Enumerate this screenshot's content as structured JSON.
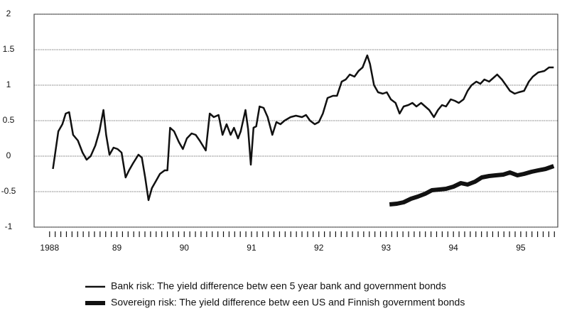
{
  "chart_data": {
    "type": "line",
    "xlim": [
      1987.77,
      1995.55
    ],
    "xticks": [
      1988,
      {
        "value": 1989,
        "label": "89"
      },
      {
        "value": 1990,
        "label": "90"
      },
      {
        "value": 1991,
        "label": "91"
      },
      {
        "value": 1992,
        "label": "92"
      },
      {
        "value": 1993,
        "label": "93"
      },
      {
        "value": 1994,
        "label": "94"
      },
      {
        "value": 1995,
        "label": "95"
      }
    ],
    "ylim": [
      -1,
      2
    ],
    "yticks": [
      -1,
      -0.5,
      0,
      0.5,
      1,
      1.5,
      2
    ],
    "grid": true,
    "series": [
      {
        "name": "Bank risk: The yield difference betw een 5 year bank and government bonds",
        "color": "#111111",
        "width": 2.5,
        "x": [
          1988.05,
          1988.13,
          1988.19,
          1988.24,
          1988.29,
          1988.35,
          1988.42,
          1988.49,
          1988.55,
          1988.61,
          1988.68,
          1988.74,
          1988.8,
          1988.84,
          1988.89,
          1988.95,
          1989.01,
          1989.07,
          1989.13,
          1989.18,
          1989.24,
          1989.32,
          1989.37,
          1989.42,
          1989.47,
          1989.52,
          1989.58,
          1989.64,
          1989.71,
          1989.75,
          1989.79,
          1989.85,
          1989.92,
          1989.98,
          1990.04,
          1990.11,
          1990.17,
          1990.23,
          1990.32,
          1990.38,
          1990.44,
          1990.51,
          1990.57,
          1990.63,
          1990.69,
          1990.74,
          1990.8,
          1990.84,
          1990.91,
          1990.95,
          1990.99,
          1991.03,
          1991.07,
          1991.12,
          1991.18,
          1991.24,
          1991.31,
          1991.37,
          1991.43,
          1991.49,
          1991.58,
          1991.66,
          1991.75,
          1991.81,
          1991.87,
          1991.94,
          1992.0,
          1992.06,
          1992.13,
          1992.21,
          1992.27,
          1992.34,
          1992.4,
          1992.46,
          1992.53,
          1992.59,
          1992.65,
          1992.72,
          1992.76,
          1992.82,
          1992.88,
          1992.95,
          1993.01,
          1993.07,
          1993.14,
          1993.2,
          1993.26,
          1993.33,
          1993.39,
          1993.45,
          1993.52,
          1993.58,
          1993.64,
          1993.71,
          1993.77,
          1993.83,
          1993.89,
          1993.96,
          1994.02,
          1994.08,
          1994.15,
          1994.21,
          1994.27,
          1994.34,
          1994.4,
          1994.46,
          1994.53,
          1994.59,
          1994.65,
          1994.72,
          1994.78,
          1994.84,
          1994.91,
          1994.97,
          1995.05,
          1995.12,
          1995.18,
          1995.26,
          1995.35,
          1995.42,
          1995.49
        ],
        "values": [
          -0.18,
          0.35,
          0.45,
          0.6,
          0.62,
          0.3,
          0.22,
          0.05,
          -0.05,
          0.0,
          0.15,
          0.35,
          0.65,
          0.3,
          0.02,
          0.12,
          0.1,
          0.05,
          -0.3,
          -0.2,
          -0.1,
          0.02,
          -0.02,
          -0.3,
          -0.62,
          -0.45,
          -0.35,
          -0.25,
          -0.2,
          -0.2,
          0.4,
          0.35,
          0.2,
          0.1,
          0.25,
          0.32,
          0.3,
          0.22,
          0.08,
          0.6,
          0.55,
          0.58,
          0.3,
          0.45,
          0.3,
          0.4,
          0.25,
          0.35,
          0.65,
          0.38,
          -0.12,
          0.4,
          0.42,
          0.7,
          0.68,
          0.55,
          0.3,
          0.48,
          0.45,
          0.5,
          0.55,
          0.57,
          0.55,
          0.58,
          0.5,
          0.45,
          0.48,
          0.6,
          0.82,
          0.85,
          0.85,
          1.05,
          1.08,
          1.15,
          1.12,
          1.2,
          1.25,
          1.42,
          1.3,
          1.0,
          0.9,
          0.88,
          0.9,
          0.8,
          0.75,
          0.6,
          0.7,
          0.72,
          0.75,
          0.7,
          0.75,
          0.7,
          0.65,
          0.55,
          0.65,
          0.72,
          0.7,
          0.8,
          0.78,
          0.75,
          0.8,
          0.92,
          1.0,
          1.05,
          1.02,
          1.08,
          1.05,
          1.1,
          1.15,
          1.08,
          1.0,
          0.92,
          0.88,
          0.9,
          0.92,
          1.05,
          1.12,
          1.18,
          1.2,
          1.25,
          1.25
        ]
      },
      {
        "name": "Sovereign risk: The yield difference betw een US and Finnish government bonds",
        "color": "#111111",
        "width": 6,
        "x": [
          1993.05,
          1993.16,
          1993.26,
          1993.37,
          1993.47,
          1993.58,
          1993.68,
          1993.79,
          1993.89,
          1994.0,
          1994.11,
          1994.21,
          1994.32,
          1994.42,
          1994.53,
          1994.63,
          1994.74,
          1994.84,
          1994.95,
          1995.05,
          1995.16,
          1995.26,
          1995.37,
          1995.49
        ],
        "values": [
          -0.68,
          -0.67,
          -0.65,
          -0.6,
          -0.57,
          -0.53,
          -0.48,
          -0.47,
          -0.46,
          -0.43,
          -0.38,
          -0.4,
          -0.36,
          -0.3,
          -0.28,
          -0.27,
          -0.26,
          -0.23,
          -0.27,
          -0.25,
          -0.22,
          -0.2,
          -0.18,
          -0.14
        ]
      }
    ]
  }
}
